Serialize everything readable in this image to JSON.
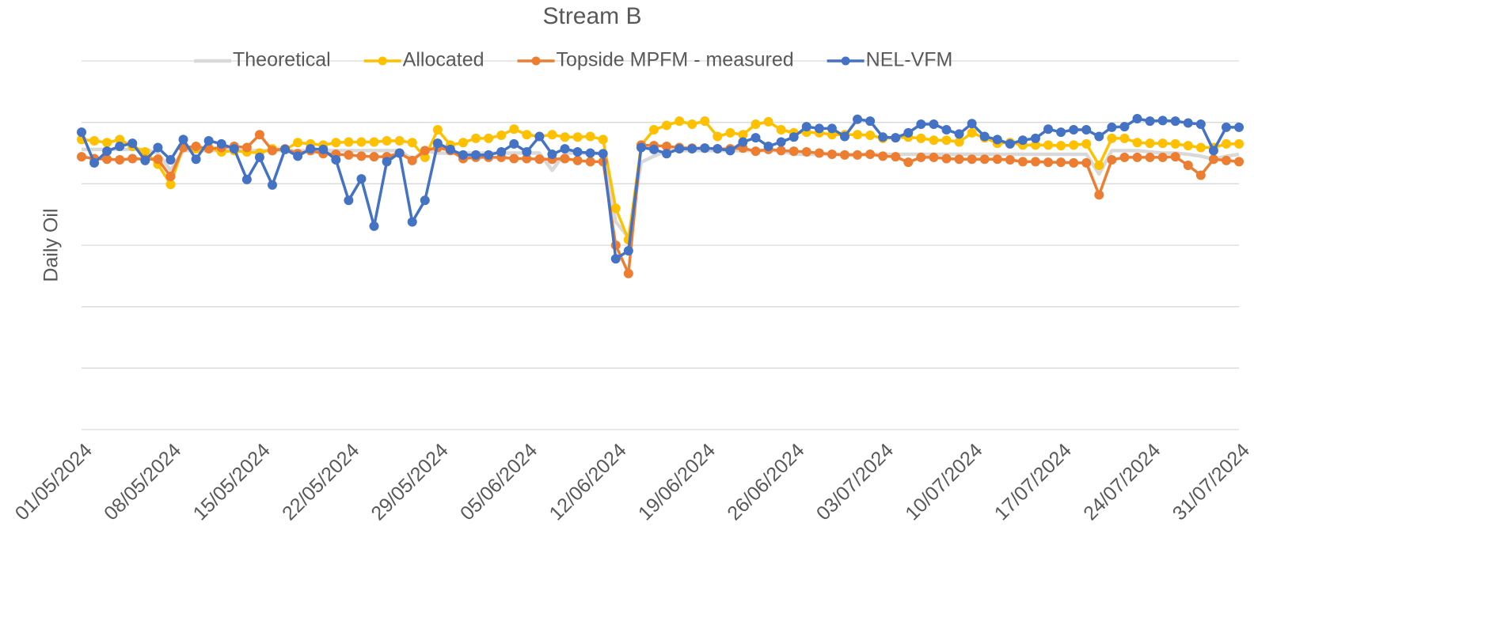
{
  "chart_data": {
    "type": "line",
    "title": "Stream B",
    "y_label": "Daily Oil",
    "categories": [
      "01/05/2024",
      null,
      null,
      null,
      null,
      null,
      null,
      "08/05/2024",
      null,
      null,
      null,
      null,
      null,
      null,
      "15/05/2024",
      null,
      null,
      null,
      null,
      null,
      null,
      "22/05/2024",
      null,
      null,
      null,
      null,
      null,
      null,
      "29/05/2024",
      null,
      null,
      null,
      null,
      null,
      null,
      "05/06/2024",
      null,
      null,
      null,
      null,
      null,
      null,
      "12/06/2024",
      null,
      null,
      null,
      null,
      null,
      null,
      "19/06/2024",
      null,
      null,
      null,
      null,
      null,
      null,
      "26/06/2024",
      null,
      null,
      null,
      null,
      null,
      null,
      "03/07/2024",
      null,
      null,
      null,
      null,
      null,
      null,
      "10/07/2024",
      null,
      null,
      null,
      null,
      null,
      null,
      "17/07/2024",
      null,
      null,
      null,
      null,
      null,
      null,
      "24/07/2024",
      null,
      null,
      null,
      null,
      null,
      null,
      "31/07/2024"
    ],
    "ylim": [
      0,
      6
    ],
    "yticks": [
      0,
      1,
      2,
      3,
      4,
      5,
      6
    ],
    "grid": true,
    "legend": "top",
    "series": [
      {
        "name": "Theoretical",
        "color": "#d9d9d9",
        "markers": false,
        "values": [
          4.56,
          4.56,
          4.56,
          4.56,
          4.56,
          4.56,
          4.5,
          4.22,
          4.54,
          4.54,
          4.54,
          4.54,
          4.54,
          4.54,
          4.54,
          4.54,
          4.54,
          4.54,
          4.54,
          4.54,
          4.54,
          4.54,
          4.54,
          4.54,
          4.54,
          4.54,
          4.4,
          4.54,
          4.5,
          4.5,
          4.5,
          4.5,
          4.5,
          4.5,
          4.5,
          4.5,
          4.5,
          4.22,
          4.5,
          4.5,
          4.5,
          4.5,
          3.38,
          3.13,
          4.35,
          4.45,
          4.54,
          4.54,
          4.54,
          4.54,
          4.54,
          4.54,
          4.54,
          4.54,
          4.54,
          4.54,
          4.48,
          4.48,
          4.48,
          4.48,
          4.48,
          4.48,
          4.48,
          4.48,
          4.48,
          4.48,
          4.48,
          4.48,
          4.48,
          4.48,
          4.48,
          4.48,
          4.48,
          4.48,
          4.48,
          4.48,
          4.48,
          4.48,
          4.48,
          4.48,
          4.16,
          4.54,
          4.54,
          4.54,
          4.52,
          4.5,
          4.5,
          4.48,
          4.45,
          4.4,
          4.45,
          4.48
        ]
      },
      {
        "name": "Allocated",
        "color": "#ffc000",
        "markers": true,
        "values": [
          4.72,
          4.7,
          4.67,
          4.72,
          4.61,
          4.52,
          4.32,
          3.99,
          4.61,
          4.57,
          4.59,
          4.52,
          4.54,
          4.52,
          4.5,
          4.57,
          4.56,
          4.67,
          4.65,
          4.63,
          4.67,
          4.68,
          4.68,
          4.68,
          4.7,
          4.7,
          4.67,
          4.43,
          4.88,
          4.63,
          4.67,
          4.74,
          4.74,
          4.79,
          4.89,
          4.8,
          4.77,
          4.8,
          4.76,
          4.76,
          4.77,
          4.72,
          3.6,
          3.09,
          4.63,
          4.88,
          4.95,
          5.02,
          4.97,
          5.02,
          4.77,
          4.83,
          4.8,
          4.97,
          5.01,
          4.88,
          4.83,
          4.84,
          4.83,
          4.8,
          4.8,
          4.8,
          4.79,
          4.74,
          4.75,
          4.76,
          4.74,
          4.71,
          4.71,
          4.68,
          4.83,
          4.75,
          4.66,
          4.67,
          4.63,
          4.63,
          4.63,
          4.62,
          4.63,
          4.65,
          4.3,
          4.74,
          4.74,
          4.67,
          4.66,
          4.66,
          4.65,
          4.62,
          4.59,
          4.59,
          4.65,
          4.65
        ]
      },
      {
        "name": "Topside MPFM - measured",
        "color": "#ed7d31",
        "markers": true,
        "values": [
          4.44,
          4.41,
          4.4,
          4.39,
          4.41,
          4.4,
          4.4,
          4.12,
          4.59,
          4.61,
          4.57,
          4.59,
          4.61,
          4.59,
          4.8,
          4.54,
          4.57,
          4.49,
          4.54,
          4.49,
          4.48,
          4.47,
          4.45,
          4.44,
          4.44,
          4.5,
          4.38,
          4.54,
          4.59,
          4.54,
          4.41,
          4.43,
          4.43,
          4.43,
          4.41,
          4.41,
          4.4,
          4.4,
          4.41,
          4.38,
          4.36,
          4.36,
          3.0,
          2.54,
          4.63,
          4.62,
          4.61,
          4.59,
          4.58,
          4.58,
          4.57,
          4.57,
          4.58,
          4.53,
          4.56,
          4.54,
          4.53,
          4.52,
          4.5,
          4.48,
          4.47,
          4.47,
          4.48,
          4.45,
          4.44,
          4.35,
          4.43,
          4.43,
          4.41,
          4.4,
          4.4,
          4.4,
          4.4,
          4.39,
          4.36,
          4.36,
          4.35,
          4.35,
          4.34,
          4.34,
          3.82,
          4.39,
          4.43,
          4.43,
          4.43,
          4.43,
          4.44,
          4.3,
          4.14,
          4.4,
          4.38,
          4.36
        ]
      },
      {
        "name": "NEL-VFM",
        "color": "#4472c4",
        "markers": true,
        "values": [
          4.84,
          4.34,
          4.53,
          4.61,
          4.66,
          4.38,
          4.59,
          4.39,
          4.72,
          4.4,
          4.7,
          4.65,
          4.57,
          4.07,
          4.43,
          3.98,
          4.56,
          4.45,
          4.57,
          4.56,
          4.39,
          3.73,
          4.08,
          3.31,
          4.36,
          4.5,
          3.38,
          3.73,
          4.66,
          4.56,
          4.47,
          4.47,
          4.47,
          4.52,
          4.65,
          4.52,
          4.77,
          4.48,
          4.57,
          4.52,
          4.5,
          4.49,
          2.78,
          2.91,
          4.59,
          4.56,
          4.49,
          4.57,
          4.57,
          4.58,
          4.57,
          4.54,
          4.68,
          4.75,
          4.61,
          4.68,
          4.76,
          4.93,
          4.9,
          4.9,
          4.77,
          5.05,
          5.02,
          4.76,
          4.75,
          4.83,
          4.97,
          4.97,
          4.88,
          4.81,
          4.98,
          4.77,
          4.72,
          4.65,
          4.71,
          4.74,
          4.89,
          4.84,
          4.88,
          4.88,
          4.77,
          4.92,
          4.93,
          5.06,
          5.02,
          5.03,
          5.02,
          4.99,
          4.97,
          4.54,
          4.92,
          4.92
        ]
      }
    ]
  }
}
